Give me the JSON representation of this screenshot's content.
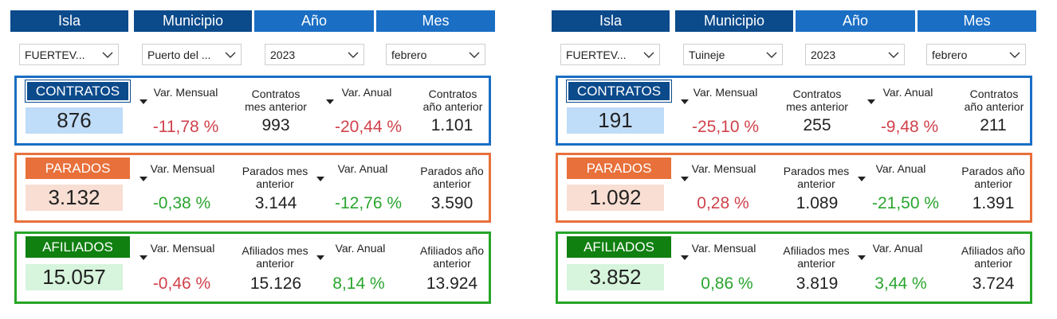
{
  "headers": {
    "isla": "Isla",
    "municipio": "Municipio",
    "anio": "Año",
    "mes": "Mes"
  },
  "panels": [
    {
      "filters": {
        "isla": "FUERTEV...",
        "municipio": "Puerto del ...",
        "anio": "2023",
        "mes": "febrero"
      },
      "contratos": {
        "label": "CONTRATOS",
        "value": "876",
        "var_mensual_label": "Var. Mensual",
        "var_mensual": "-11,78 %",
        "prev_label_1": "Contratos",
        "prev_label_2": "mes anterior",
        "prev_month": "993",
        "var_anual_label": "Var. Anual",
        "var_anual": "-20,44 %",
        "prev_year_label_1": "Contratos",
        "prev_year_label_2": "año anterior",
        "prev_year": "1.101"
      },
      "parados": {
        "label": "PARADOS",
        "value": "3.132",
        "var_mensual_label": "Var. Mensual",
        "var_mensual": "-0,38 %",
        "prev_label_1": "Parados mes",
        "prev_label_2": "anterior",
        "prev_month": "3.144",
        "var_anual_label": "Var. Anual",
        "var_anual": "-12,76 %",
        "prev_year_label_1": "Parados año",
        "prev_year_label_2": "anterior",
        "prev_year": "3.590"
      },
      "afiliados": {
        "label": "AFILIADOS",
        "value": "15.057",
        "var_mensual_label": "Var. Mensual",
        "var_mensual": "-0,46 %",
        "prev_label_1": "Afiliados mes",
        "prev_label_2": "anterior",
        "prev_month": "15.126",
        "var_anual_label": "Var. Anual",
        "var_anual": "8,14 %",
        "prev_year_label_1": "Afiliados año",
        "prev_year_label_2": "anterior",
        "prev_year": "13.924"
      }
    },
    {
      "filters": {
        "isla": "FUERTEV...",
        "municipio": "Tuineje",
        "anio": "2023",
        "mes": "febrero"
      },
      "contratos": {
        "label": "CONTRATOS",
        "value": "191",
        "var_mensual_label": "Var. Mensual",
        "var_mensual": "-25,10 %",
        "prev_label_1": "Contratos",
        "prev_label_2": "mes anterior",
        "prev_month": "255",
        "var_anual_label": "Var. Anual",
        "var_anual": "-9,48 %",
        "prev_year_label_1": "Contratos",
        "prev_year_label_2": "año anterior",
        "prev_year": "211"
      },
      "parados": {
        "label": "PARADOS",
        "value": "1.092",
        "var_mensual_label": "Var. Mensual",
        "var_mensual": "0,28 %",
        "prev_label_1": "Parados mes",
        "prev_label_2": "anterior",
        "prev_month": "1.089",
        "var_anual_label": "Var. Anual",
        "var_anual": "-21,50 %",
        "prev_year_label_1": "Parados año",
        "prev_year_label_2": "anterior",
        "prev_year": "1.391"
      },
      "afiliados": {
        "label": "AFILIADOS",
        "value": "3.852",
        "var_mensual_label": "Var. Mensual",
        "var_mensual": "0,86 %",
        "prev_label_1": "Afiliados mes",
        "prev_label_2": "anterior",
        "prev_month": "3.819",
        "var_anual_label": "Var. Anual",
        "var_anual": "3,44 %",
        "prev_year_label_1": "Afiliados año",
        "prev_year_label_2": "anterior",
        "prev_year": "3.724"
      }
    }
  ],
  "colors": {
    "header_dark": "#0b4a8b",
    "header_mid": "#1a6ec4",
    "contratos": "#1a6ec4",
    "parados": "#e8703a",
    "afiliados": "#27a527",
    "negative": "#d0424b",
    "positive": "#2aa52f"
  },
  "icons": {
    "dropdown": "chevron-down-icon",
    "sort": "sort-desc-icon"
  }
}
